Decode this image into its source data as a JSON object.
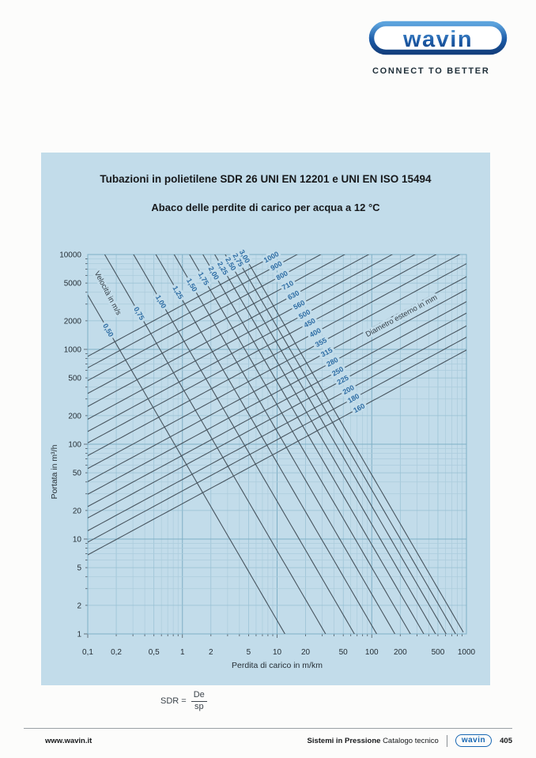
{
  "logo": {
    "brand": "wavin",
    "tagline": "CONNECT TO BETTER",
    "blue_top": "#5ca3dd",
    "blue_bottom": "#133f7e"
  },
  "panel": {
    "title": "Tubazioni in polietilene SDR 26 UNI EN 12201 e UNI EN ISO 15494",
    "subtitle": "Abaco delle perdite di carico per acqua a 12 °C",
    "bg": "#c2dcea"
  },
  "chart_data": {
    "type": "line",
    "title": "Abaco delle perdite di carico per acqua a 12 °C",
    "xlabel": "Perdita di carico in m/km",
    "ylabel": "Portata in m³/h",
    "x_scale": "log",
    "y_scale": "log",
    "xlim": [
      0.1,
      1000
    ],
    "ylim": [
      1,
      10000
    ],
    "grid": "log paper, minor lines at every mantissa",
    "sdr": 26,
    "x_ticks": {
      "values": [
        0.1,
        0.2,
        0.5,
        1,
        2,
        5,
        10,
        20,
        50,
        100,
        200,
        500,
        1000
      ],
      "labels": [
        "0,1",
        "0,2",
        "0,5",
        "1",
        "2",
        "5",
        "10",
        "20",
        "50",
        "100",
        "200",
        "500",
        "1000"
      ]
    },
    "y_ticks": {
      "values": [
        1,
        2,
        5,
        10,
        20,
        50,
        100,
        200,
        500,
        1000,
        2000,
        5000,
        10000
      ],
      "labels": [
        "1",
        "2",
        "5",
        "10",
        "20",
        "50",
        "100",
        "200",
        "500",
        "1000",
        "2000",
        "5000",
        "10000"
      ]
    },
    "families": {
      "velocity": {
        "name": "Velocità in m/s",
        "values": [
          0.5,
          0.75,
          1.0,
          1.25,
          1.5,
          1.75,
          2.0,
          2.25,
          2.5,
          2.75,
          3.0
        ],
        "labels": [
          "0,50",
          "0,75",
          "1,00",
          "1,25",
          "1,50",
          "1,75",
          "2,00",
          "2,25",
          "2,50",
          "2,75",
          "3,00"
        ]
      },
      "diameter": {
        "name": "Diametro esterno in mm",
        "values": [
          160,
          180,
          200,
          225,
          250,
          280,
          315,
          355,
          400,
          450,
          500,
          560,
          630,
          710,
          800,
          900,
          1000
        ],
        "labels": [
          "160",
          "180",
          "200",
          "225",
          "250",
          "280",
          "315",
          "355",
          "400",
          "450",
          "500",
          "560",
          "630",
          "710",
          "800",
          "900",
          "1000"
        ]
      }
    },
    "colors": {
      "panel_bg": "#c2dcea",
      "grid_minor": "#abccdc",
      "grid_mid": "#97c0d3",
      "grid_major": "#7fafc6",
      "line": "#47545e",
      "family_label": "#2e6da4",
      "axis_text": "#262f36"
    }
  },
  "formula": {
    "lhs": "SDR =",
    "numerator": "De",
    "denominator": "sp"
  },
  "footer": {
    "left": "www.wavin.it",
    "right_bold": "Sistemi in Pressione",
    "right_regular": "Catalogo tecnico",
    "brand": "wavin",
    "page_number": "405"
  }
}
